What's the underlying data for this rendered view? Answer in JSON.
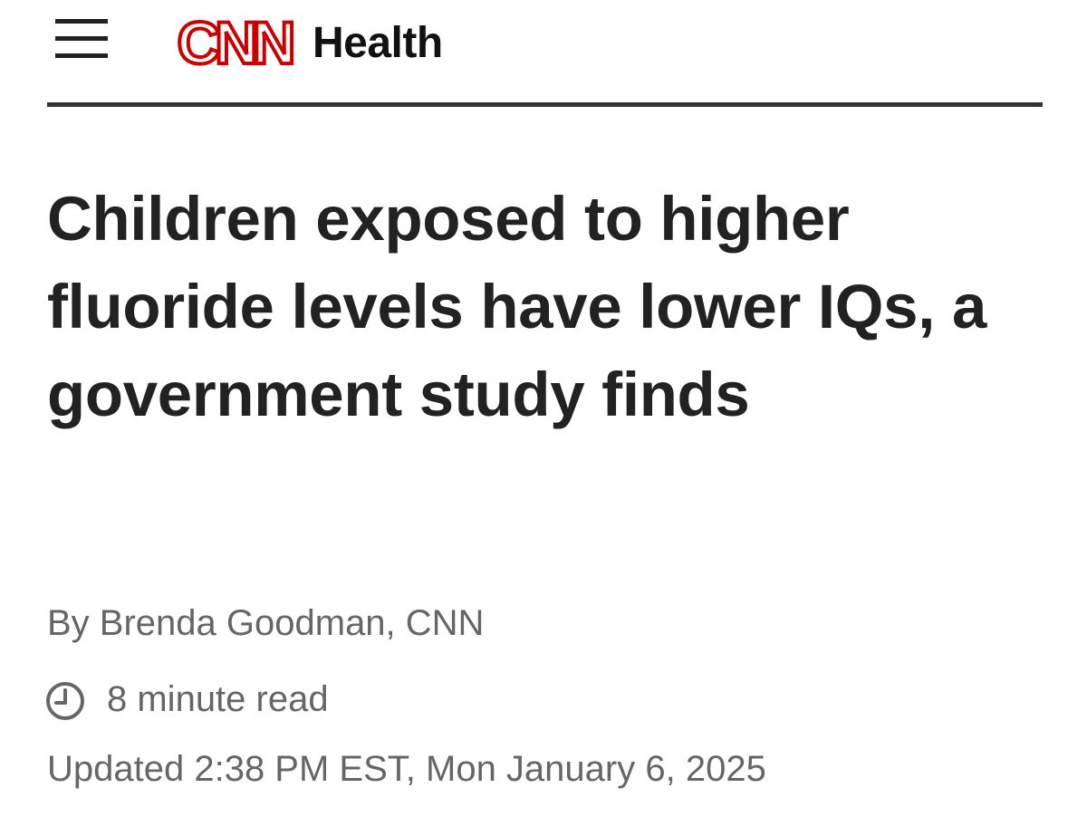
{
  "header": {
    "logo": "CNN",
    "section": "Health"
  },
  "article": {
    "headline": "Children exposed to higher fluoride levels have lower IQs, a government study finds",
    "byline": "By Brenda Goodman, CNN",
    "read_time": "8 minute read",
    "updated": "Updated 2:38 PM EST, Mon January 6, 2025"
  }
}
